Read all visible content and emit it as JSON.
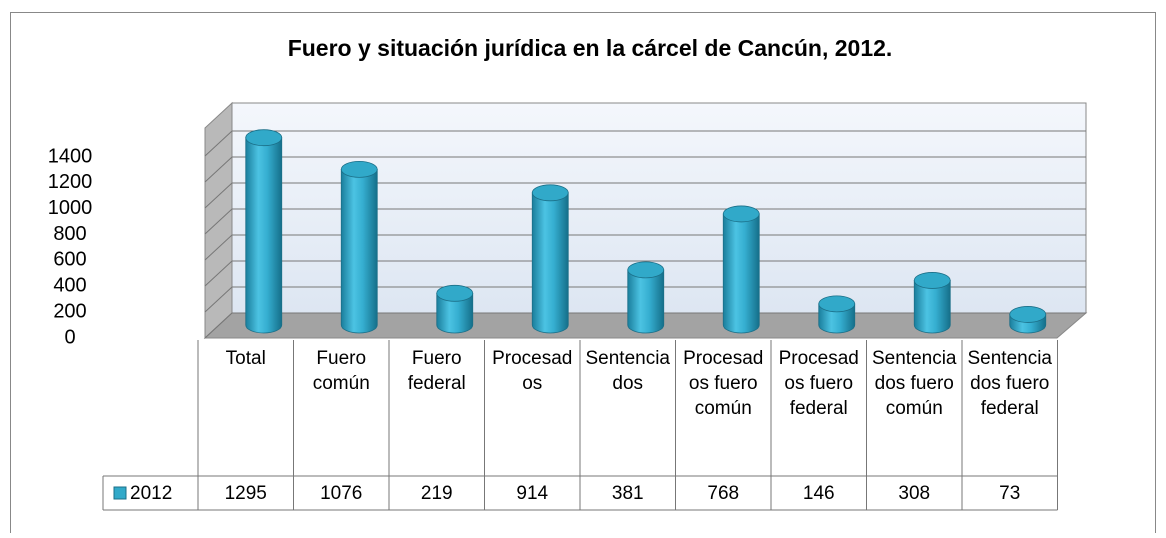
{
  "chart_data": {
    "type": "bar3d_cylinder",
    "title": "Fuero y situación jurídica en la cárcel de Cancún, 2012.",
    "categories": [
      "Total",
      "Fuero común",
      "Fuero federal",
      "Procesados",
      "Sentenciados",
      "Procesados fuero común",
      "Procesados fuero federal",
      "Sentenciados fuero común",
      "Sentenciados fuero federal"
    ],
    "series": [
      {
        "name": "2012",
        "color": "#31a9c9",
        "values": [
          1295,
          1076,
          219,
          914,
          381,
          768,
          146,
          308,
          73
        ]
      }
    ],
    "ylim": [
      0,
      1400
    ],
    "yticks": [
      0,
      200,
      400,
      600,
      800,
      1000,
      1200,
      1400
    ],
    "grid": true,
    "data_table": true
  }
}
